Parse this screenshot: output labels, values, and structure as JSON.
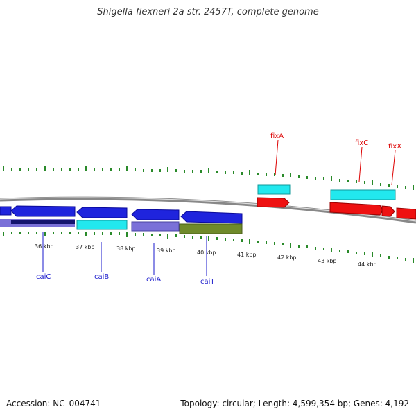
{
  "title": "Shigella flexneri 2a str. 2457T, complete genome",
  "footer": {
    "accession": "Accession: NC_004741",
    "summary": "Topology: circular; Length: 4,599,354 bp; Genes: 4,192"
  },
  "colors": {
    "backbone": "#888888",
    "tick": "#2a8a2a",
    "gene_label_minus": "#1a1acc",
    "gene_label_plus": "#dd0000",
    "kbp_label": "#222222"
  },
  "kbp_labels": [
    "36 kbp",
    "37 kbp",
    "38 kbp",
    "39 kbp",
    "40 kbp",
    "41 kbp",
    "42 kbp",
    "43 kbp",
    "44 kbp"
  ],
  "gene_labels": [
    {
      "name": "caiC",
      "strand": "minus"
    },
    {
      "name": "caiB",
      "strand": "minus"
    },
    {
      "name": "caiA",
      "strand": "minus"
    },
    {
      "name": "caiT",
      "strand": "minus"
    },
    {
      "name": "fixA",
      "strand": "plus"
    },
    {
      "name": "fixC",
      "strand": "plus"
    },
    {
      "name": "fixX",
      "strand": "plus"
    }
  ]
}
